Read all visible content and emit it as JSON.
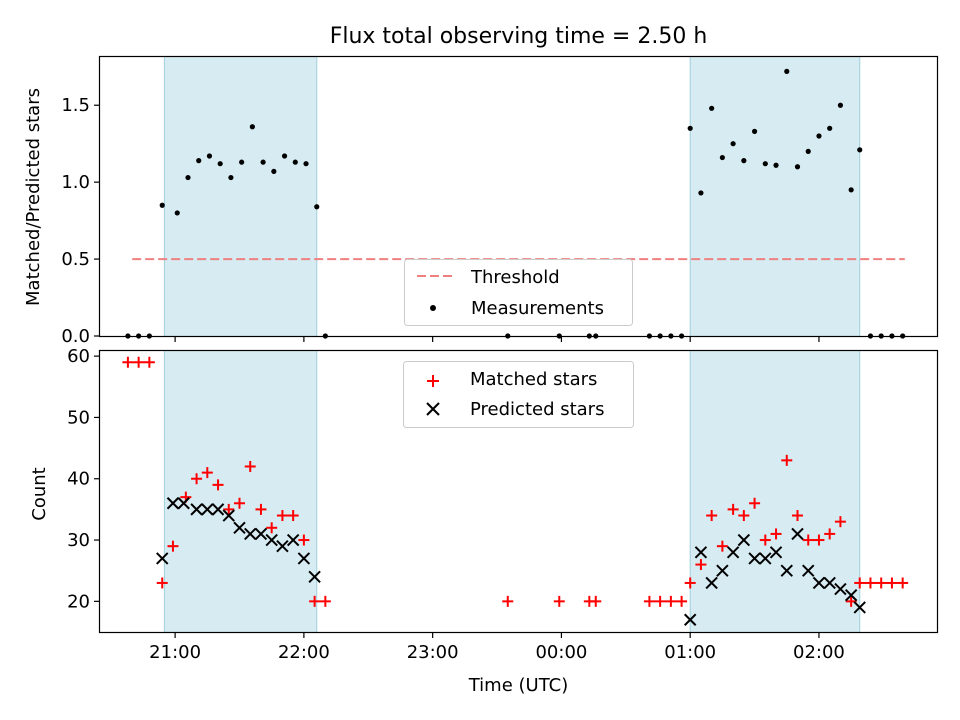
{
  "chart_data": [
    {
      "type": "scatter",
      "title": "Flux total observing time = 2.50 h",
      "xlabel": "",
      "ylabel": "Matched/Predicted stars",
      "xlim": [
        "20:25",
        "02:55"
      ],
      "ylim": [
        0,
        1.82
      ],
      "yticks": [
        "0.0",
        "0.5",
        "1.0",
        "1.5"
      ],
      "shaded_intervals": [
        [
          "20:55",
          "22:06"
        ],
        [
          "01:00",
          "02:19"
        ]
      ],
      "threshold": {
        "name": "Threshold",
        "y": 0.5,
        "x_range": [
          "20:40",
          "02:40"
        ],
        "color": "#f08080"
      },
      "legend": {
        "placement": "lower center",
        "entries": [
          "Threshold",
          "Measurements"
        ]
      },
      "series": [
        {
          "name": "Measurements",
          "marker": "dot",
          "color": "#000000",
          "points": [
            [
              "20:38",
              0
            ],
            [
              "20:43",
              0
            ],
            [
              "20:48",
              0
            ],
            [
              "20:54",
              0.85
            ],
            [
              "21:01",
              0.8
            ],
            [
              "21:06",
              1.03
            ],
            [
              "21:11",
              1.14
            ],
            [
              "21:16",
              1.17
            ],
            [
              "21:21",
              1.12
            ],
            [
              "21:26",
              1.03
            ],
            [
              "21:31",
              1.13
            ],
            [
              "21:36",
              1.36
            ],
            [
              "21:41",
              1.13
            ],
            [
              "21:46",
              1.07
            ],
            [
              "21:51",
              1.17
            ],
            [
              "21:56",
              1.13
            ],
            [
              "22:01",
              1.12
            ],
            [
              "22:06",
              0.84
            ],
            [
              "22:10",
              0
            ],
            [
              "23:35",
              0
            ],
            [
              "23:59",
              0
            ],
            [
              "00:13",
              0
            ],
            [
              "00:16",
              0
            ],
            [
              "00:41",
              0
            ],
            [
              "00:46",
              0
            ],
            [
              "00:51",
              0
            ],
            [
              "00:56",
              0
            ],
            [
              "01:00",
              1.35
            ],
            [
              "01:05",
              0.93
            ],
            [
              "01:10",
              1.48
            ],
            [
              "01:15",
              1.16
            ],
            [
              "01:20",
              1.25
            ],
            [
              "01:25",
              1.14
            ],
            [
              "01:30",
              1.33
            ],
            [
              "01:35",
              1.12
            ],
            [
              "01:40",
              1.11
            ],
            [
              "01:45",
              1.72
            ],
            [
              "01:50",
              1.1
            ],
            [
              "01:55",
              1.2
            ],
            [
              "02:00",
              1.3
            ],
            [
              "02:05",
              1.35
            ],
            [
              "02:10",
              1.5
            ],
            [
              "02:15",
              0.95
            ],
            [
              "02:19",
              1.21
            ],
            [
              "02:24",
              0
            ],
            [
              "02:29",
              0
            ],
            [
              "02:34",
              0
            ],
            [
              "02:39",
              0
            ]
          ]
        }
      ]
    },
    {
      "type": "scatter",
      "title": "",
      "xlabel": "Time (UTC)",
      "ylabel": "Count",
      "xlim": [
        "20:25",
        "02:55"
      ],
      "ylim": [
        15,
        61
      ],
      "yticks": [
        "20",
        "30",
        "40",
        "50",
        "60"
      ],
      "xticks": [
        "21:00",
        "22:00",
        "23:00",
        "00:00",
        "01:00",
        "02:00"
      ],
      "shaded_intervals": [
        [
          "20:55",
          "22:06"
        ],
        [
          "01:00",
          "02:19"
        ]
      ],
      "legend": {
        "placement": "upper center",
        "entries": [
          "Matched stars",
          "Predicted stars"
        ]
      },
      "series": [
        {
          "name": "Matched stars",
          "marker": "plus",
          "color": "#ff0000",
          "points": [
            [
              "20:38",
              59
            ],
            [
              "20:43",
              59
            ],
            [
              "20:48",
              59
            ],
            [
              "20:54",
              23
            ],
            [
              "20:59",
              29
            ],
            [
              "21:05",
              37
            ],
            [
              "21:10",
              40
            ],
            [
              "21:15",
              41
            ],
            [
              "21:20",
              39
            ],
            [
              "21:25",
              35
            ],
            [
              "21:30",
              36
            ],
            [
              "21:35",
              42
            ],
            [
              "21:40",
              35
            ],
            [
              "21:45",
              32
            ],
            [
              "21:50",
              34
            ],
            [
              "21:55",
              34
            ],
            [
              "22:00",
              30
            ],
            [
              "22:05",
              20
            ],
            [
              "22:10",
              20
            ],
            [
              "23:35",
              20
            ],
            [
              "23:59",
              20
            ],
            [
              "00:13",
              20
            ],
            [
              "00:16",
              20
            ],
            [
              "00:41",
              20
            ],
            [
              "00:46",
              20
            ],
            [
              "00:51",
              20
            ],
            [
              "00:56",
              20
            ],
            [
              "01:00",
              23
            ],
            [
              "01:05",
              26
            ],
            [
              "01:10",
              34
            ],
            [
              "01:15",
              29
            ],
            [
              "01:20",
              35
            ],
            [
              "01:25",
              34
            ],
            [
              "01:30",
              36
            ],
            [
              "01:35",
              30
            ],
            [
              "01:40",
              31
            ],
            [
              "01:45",
              43
            ],
            [
              "01:50",
              34
            ],
            [
              "01:55",
              30
            ],
            [
              "02:00",
              30
            ],
            [
              "02:05",
              31
            ],
            [
              "02:10",
              33
            ],
            [
              "02:15",
              20
            ],
            [
              "02:19",
              23
            ],
            [
              "02:24",
              23
            ],
            [
              "02:29",
              23
            ],
            [
              "02:34",
              23
            ],
            [
              "02:39",
              23
            ]
          ]
        },
        {
          "name": "Predicted stars",
          "marker": "x",
          "color": "#000000",
          "points": [
            [
              "20:54",
              27
            ],
            [
              "20:59",
              36
            ],
            [
              "21:04",
              36
            ],
            [
              "21:10",
              35
            ],
            [
              "21:15",
              35
            ],
            [
              "21:20",
              35
            ],
            [
              "21:25",
              34
            ],
            [
              "21:30",
              32
            ],
            [
              "21:35",
              31
            ],
            [
              "21:40",
              31
            ],
            [
              "21:45",
              30
            ],
            [
              "21:50",
              29
            ],
            [
              "21:55",
              30
            ],
            [
              "22:00",
              27
            ],
            [
              "22:05",
              24
            ],
            [
              "01:00",
              17
            ],
            [
              "01:05",
              28
            ],
            [
              "01:10",
              23
            ],
            [
              "01:15",
              25
            ],
            [
              "01:20",
              28
            ],
            [
              "01:25",
              30
            ],
            [
              "01:30",
              27
            ],
            [
              "01:35",
              27
            ],
            [
              "01:40",
              28
            ],
            [
              "01:45",
              25
            ],
            [
              "01:50",
              31
            ],
            [
              "01:55",
              25
            ],
            [
              "02:00",
              23
            ],
            [
              "02:05",
              23
            ],
            [
              "02:10",
              22
            ],
            [
              "02:15",
              21
            ],
            [
              "02:19",
              19
            ]
          ]
        }
      ]
    }
  ]
}
